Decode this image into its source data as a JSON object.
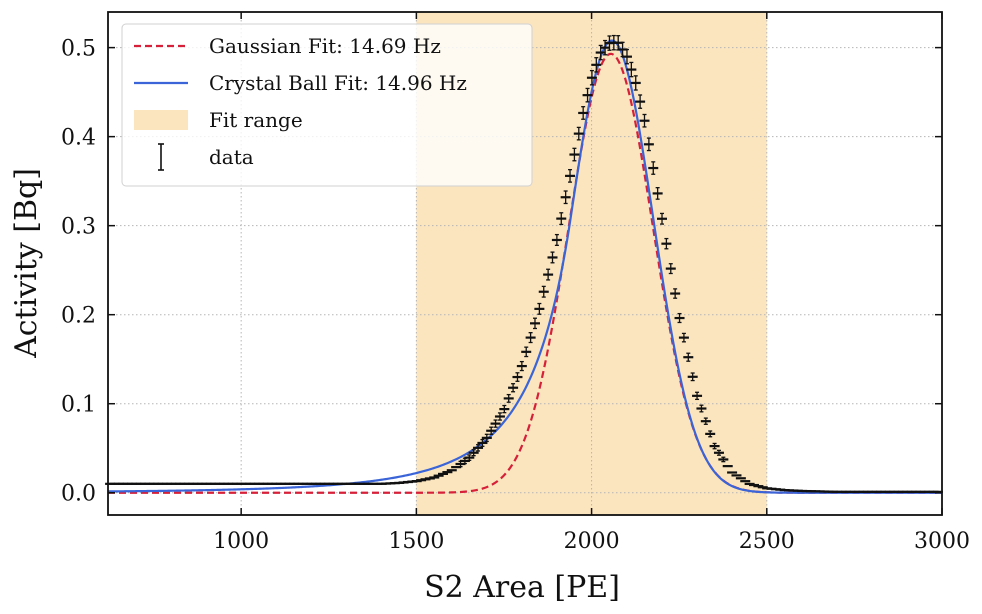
{
  "chart_data": {
    "type": "line",
    "xlabel": "S2 Area [PE]",
    "ylabel": "Activity [Bq]",
    "xlim": [
      620,
      3000
    ],
    "ylim": [
      -0.025,
      0.54
    ],
    "xticks": [
      1000,
      1500,
      2000,
      2500,
      3000
    ],
    "xtick_labels": [
      "1000",
      "1500",
      "2000",
      "2500",
      "3000"
    ],
    "yticks": [
      0.0,
      0.1,
      0.2,
      0.3,
      0.4,
      0.5
    ],
    "ytick_labels": [
      "0.0",
      "0.1",
      "0.2",
      "0.3",
      "0.4",
      "0.5"
    ],
    "grid": true,
    "legend_position": "top-left",
    "fit_range": [
      1500,
      2500
    ],
    "series": [
      {
        "name": "Gaussian Fit: 14.69 Hz",
        "kind": "gaussian",
        "color": "#d62039",
        "style": "dashed",
        "amplitude": 0.493,
        "mean": 2055,
        "sigma": 120
      },
      {
        "name": "Crystal Ball Fit: 14.96 Hz",
        "kind": "crystal_ball",
        "color": "#3a64d8",
        "style": "solid",
        "amplitude": 0.508,
        "mean": 2058,
        "sigma": 118,
        "alpha": 1.0,
        "n": 4.0
      }
    ],
    "data": {
      "name": "data",
      "color": "#111111",
      "x": [
        620,
        700,
        800,
        900,
        1000,
        1100,
        1200,
        1300,
        1400,
        1450,
        1500,
        1550,
        1600,
        1650,
        1700,
        1750,
        1800,
        1850,
        1900,
        1925,
        1950,
        1975,
        2000,
        2025,
        2050,
        2075,
        2100,
        2125,
        2150,
        2175,
        2200,
        2250,
        2300,
        2350,
        2400,
        2450,
        2500,
        2550,
        2600,
        2700,
        2800,
        2900,
        3000
      ],
      "y": [
        0.01,
        0.01,
        0.01,
        0.01,
        0.01,
        0.01,
        0.01,
        0.01,
        0.01,
        0.011,
        0.013,
        0.017,
        0.025,
        0.039,
        0.061,
        0.093,
        0.141,
        0.205,
        0.282,
        0.33,
        0.378,
        0.425,
        0.465,
        0.494,
        0.505,
        0.506,
        0.491,
        0.462,
        0.42,
        0.367,
        0.31,
        0.198,
        0.11,
        0.053,
        0.023,
        0.01,
        0.005,
        0.003,
        0.002,
        0.001,
        0.001,
        0.001,
        0.001
      ],
      "yerr": [
        0.002,
        0.002,
        0.002,
        0.002,
        0.002,
        0.002,
        0.002,
        0.002,
        0.002,
        0.002,
        0.002,
        0.002,
        0.003,
        0.003,
        0.004,
        0.004,
        0.005,
        0.006,
        0.006,
        0.007,
        0.007,
        0.007,
        0.008,
        0.008,
        0.008,
        0.008,
        0.008,
        0.008,
        0.007,
        0.007,
        0.006,
        0.005,
        0.004,
        0.003,
        0.002,
        0.002,
        0.002,
        0.002,
        0.002,
        0.002,
        0.002,
        0.002,
        0.002
      ]
    },
    "legend": [
      {
        "label": "Gaussian Fit: 14.69 Hz",
        "kind": "dashed-line",
        "color": "#d62039"
      },
      {
        "label": "Crystal Ball Fit: 14.96 Hz",
        "kind": "line",
        "color": "#3a64d8"
      },
      {
        "label": "Fit range",
        "kind": "patch",
        "color": "#fbe5bf"
      },
      {
        "label": "data",
        "kind": "errorbar",
        "color": "#111111"
      }
    ],
    "fit_range_color": "#fbe5bf",
    "grid_color": "#b5b5b5"
  }
}
